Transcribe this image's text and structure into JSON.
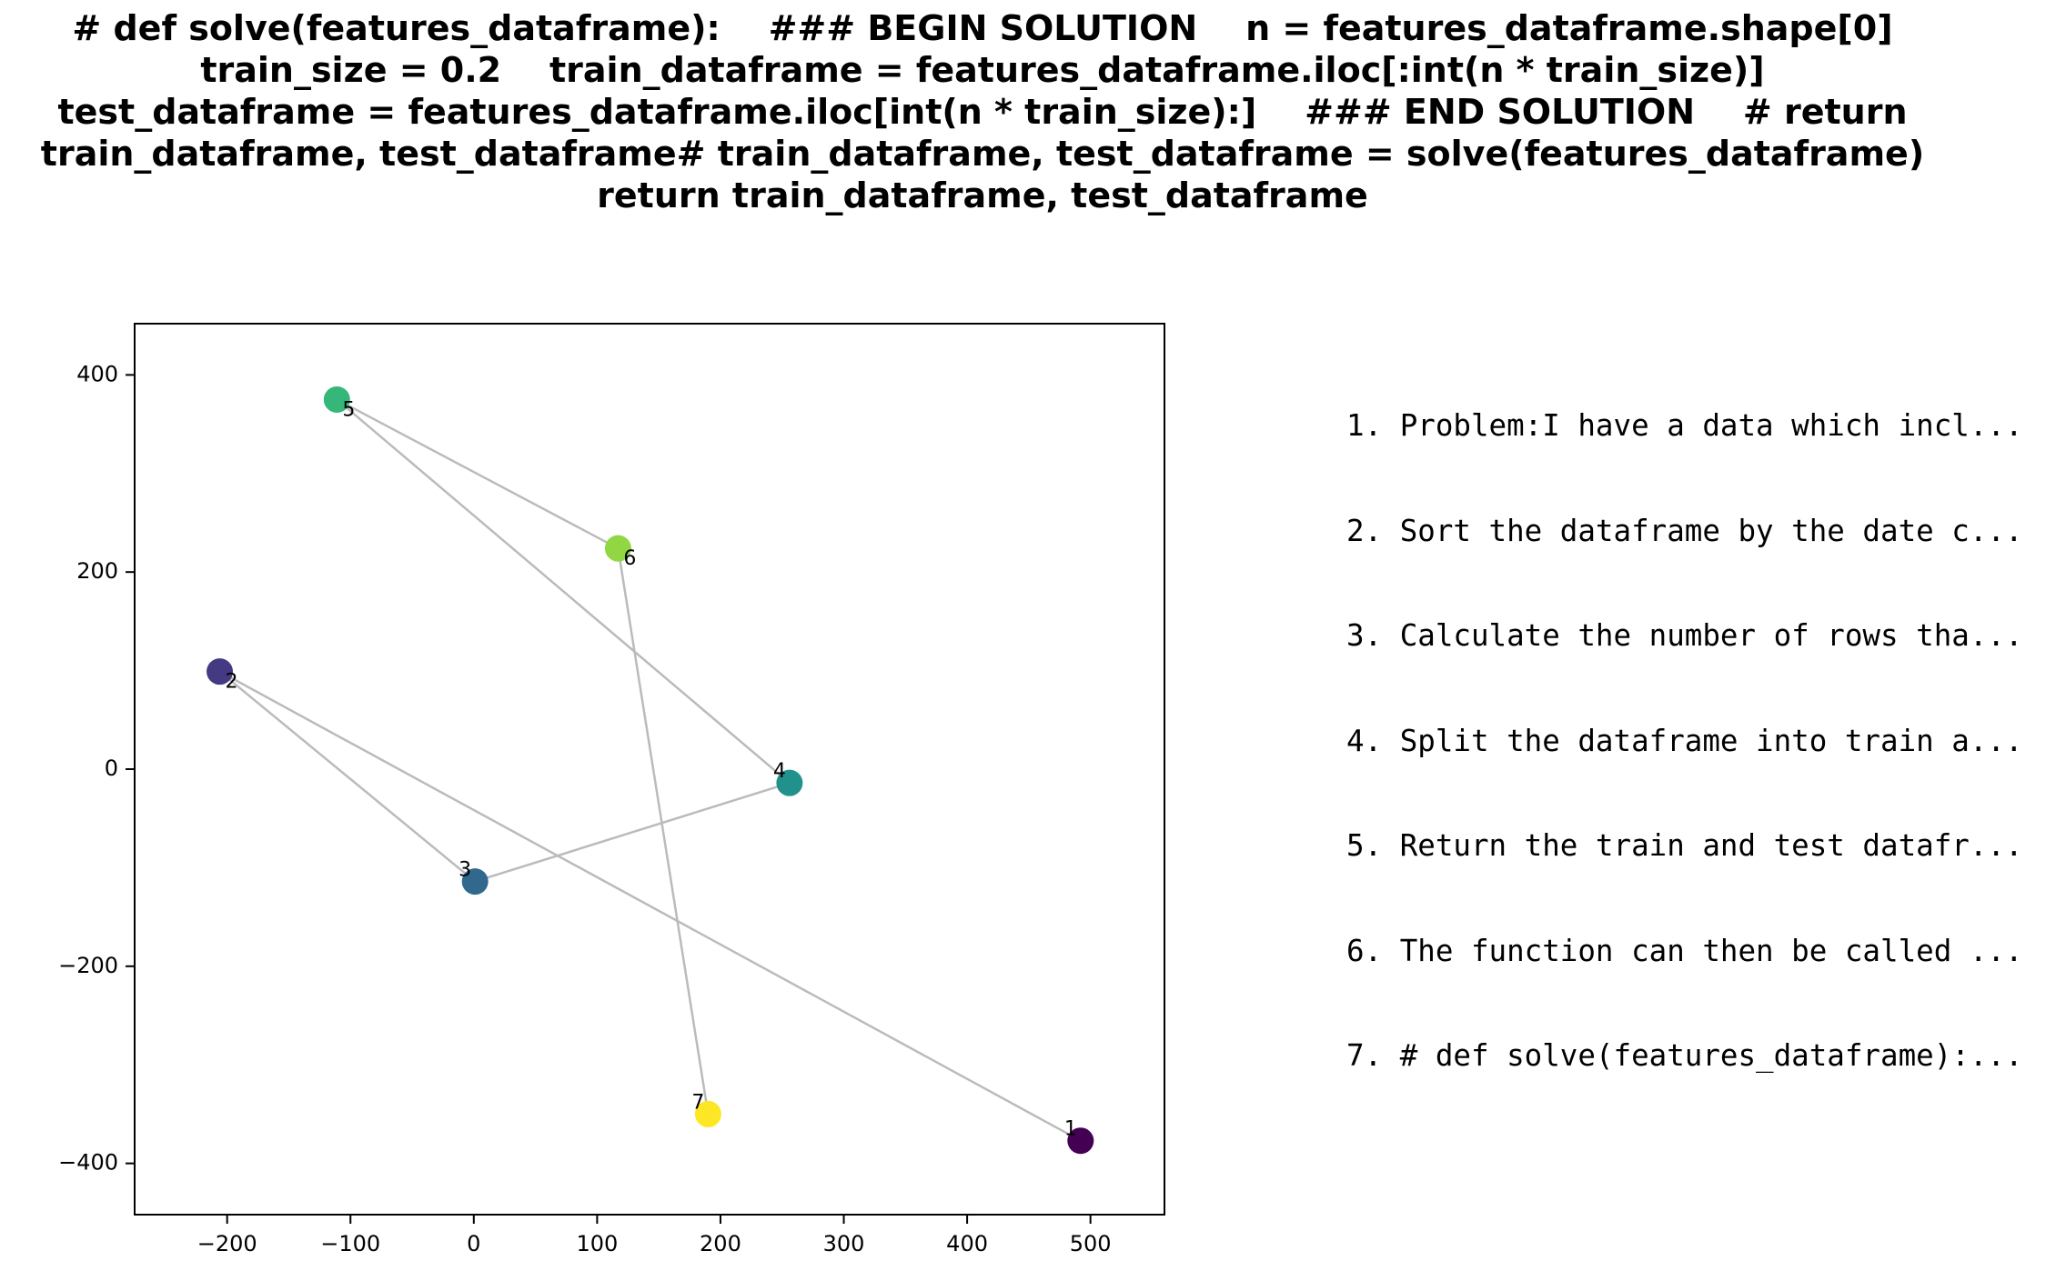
{
  "title_lines": [
    "# def solve(features_dataframe):    ### BEGIN SOLUTION    n = features_dataframe.shape[0]",
    "train_size = 0.2    train_dataframe = features_dataframe.iloc[:int(n * train_size)]",
    "test_dataframe = features_dataframe.iloc[int(n * train_size):]    ### END SOLUTION    # return",
    "train_dataframe, test_dataframe# train_dataframe, test_dataframe = solve(features_dataframe)",
    "return train_dataframe, test_dataframe"
  ],
  "steps": [
    "1. Problem:I have a data which incl...",
    "2. Sort the dataframe by the date c...",
    "3. Calculate the number of rows tha...",
    "4. Split the dataframe into train a...",
    "5. Return the train and test datafr...",
    "6. The function can then be called ...",
    "7. # def solve(features_dataframe):..."
  ],
  "chart_data": {
    "type": "scatter",
    "title": "",
    "xlabel": "",
    "ylabel": "",
    "xlim": [
      -275,
      560
    ],
    "ylim": [
      -452,
      452
    ],
    "xticks": [
      -200,
      -100,
      0,
      100,
      200,
      300,
      400,
      500
    ],
    "yticks": [
      -400,
      -200,
      0,
      200,
      400
    ],
    "xtick_labels": [
      "−200",
      "−100",
      "0",
      "100",
      "200",
      "300",
      "400",
      "500"
    ],
    "ytick_labels": [
      "−400",
      "−200",
      "0",
      "200",
      "400"
    ],
    "grid": false,
    "connect_in_order": true,
    "line_color": "#bbbbbb",
    "colormap": "viridis",
    "points": [
      {
        "label": "1",
        "x": 492,
        "y": -377,
        "color": "#440154"
      },
      {
        "label": "2",
        "x": -206,
        "y": 99,
        "color": "#443983"
      },
      {
        "label": "3",
        "x": 1,
        "y": -114,
        "color": "#31688e"
      },
      {
        "label": "4",
        "x": 256,
        "y": -14,
        "color": "#21918c"
      },
      {
        "label": "5",
        "x": -111,
        "y": 375,
        "color": "#35b779"
      },
      {
        "label": "6",
        "x": 117,
        "y": 224,
        "color": "#90d743"
      },
      {
        "label": "7",
        "x": 190,
        "y": -350,
        "color": "#fde725"
      }
    ]
  }
}
